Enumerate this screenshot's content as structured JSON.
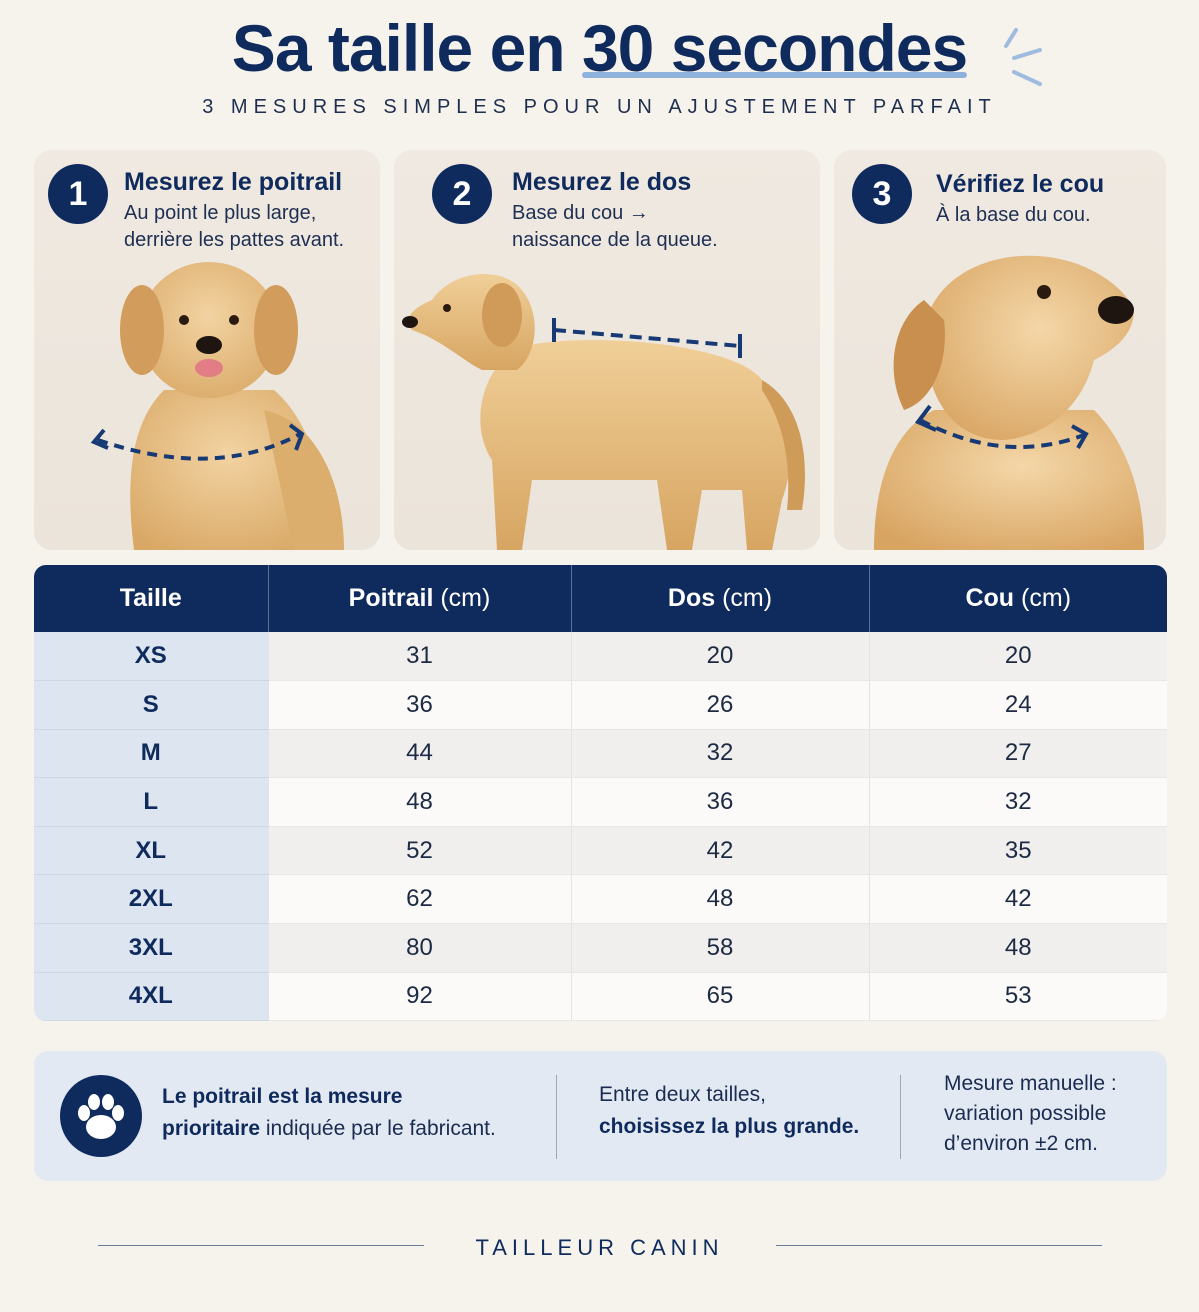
{
  "header": {
    "title_before": "Sa taille en ",
    "title_highlight": "30 secondes",
    "subtitle": "3 MESURES SIMPLES POUR UN AJUSTEMENT PARFAIT"
  },
  "steps": [
    {
      "number": "1",
      "title": "Mesurez le poitrail",
      "desc_line1": "Au point le plus large,",
      "desc_line2": "derrière les pattes avant."
    },
    {
      "number": "2",
      "title": "Mesurez le dos",
      "desc_line1": "Base du cou →",
      "desc_line2": "naissance de la queue."
    },
    {
      "number": "3",
      "title": "Vérifiez le cou",
      "desc_line1": "À la base du cou.",
      "desc_line2": ""
    }
  ],
  "table": {
    "headers": [
      {
        "bold": "Taille",
        "normal": ""
      },
      {
        "bold": "Poitrail",
        "normal": " (cm)"
      },
      {
        "bold": "Dos",
        "normal": " (cm)"
      },
      {
        "bold": "Cou",
        "normal": " (cm)"
      }
    ],
    "rows": [
      [
        "XS",
        "31",
        "20",
        "20"
      ],
      [
        "S",
        "36",
        "26",
        "24"
      ],
      [
        "M",
        "44",
        "32",
        "27"
      ],
      [
        "L",
        "48",
        "36",
        "32"
      ],
      [
        "XL",
        "52",
        "42",
        "35"
      ],
      [
        "2XL",
        "62",
        "48",
        "42"
      ],
      [
        "3XL",
        "80",
        "58",
        "48"
      ],
      [
        "4XL",
        "92",
        "65",
        "53"
      ]
    ]
  },
  "info": {
    "note1_bold1": "Le poitrail est la mesure",
    "note1_bold2": "prioritaire",
    "note1_rest": " indiquée par le fabricant.",
    "note2_line1": "Entre deux tailles,",
    "note2_bold": "choisissez la plus grande.",
    "note3_line1": "Mesure manuelle :",
    "note3_line2": "variation possible",
    "note3_line3": "d’environ ±2 cm."
  },
  "footer": {
    "brand": "TAILLEUR CANIN"
  },
  "colors": {
    "navy": "#0f2a5c",
    "background": "#f6f2ec",
    "accent": "#8fb2dc"
  },
  "icons": [
    "paw-icon",
    "measure-arrow-icon",
    "sparkle-icon"
  ]
}
